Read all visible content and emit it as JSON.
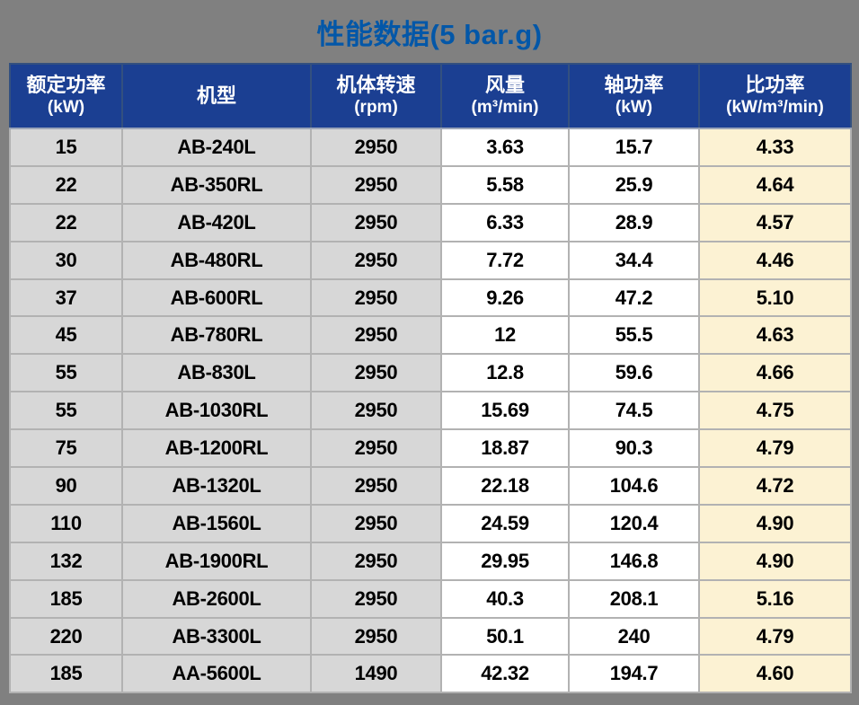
{
  "title": "性能数据(5 bar.g)",
  "table": {
    "columns": [
      {
        "id": "rated_power",
        "label": "额定功率",
        "unit": "(kW)"
      },
      {
        "id": "model",
        "label": "机型",
        "unit": ""
      },
      {
        "id": "speed",
        "label": "机体转速",
        "unit": "(rpm)"
      },
      {
        "id": "air_flow",
        "label": "风量",
        "unit": "(m³/min)"
      },
      {
        "id": "shaft_power",
        "label": "轴功率",
        "unit": "(kW)"
      },
      {
        "id": "specific_power",
        "label": "比功率",
        "unit": "(kW/m³/min)"
      }
    ],
    "rows": [
      [
        "15",
        "AB-240L",
        "2950",
        "3.63",
        "15.7",
        "4.33"
      ],
      [
        "22",
        "AB-350RL",
        "2950",
        "5.58",
        "25.9",
        "4.64"
      ],
      [
        "22",
        "AB-420L",
        "2950",
        "6.33",
        "28.9",
        "4.57"
      ],
      [
        "30",
        "AB-480RL",
        "2950",
        "7.72",
        "34.4",
        "4.46"
      ],
      [
        "37",
        "AB-600RL",
        "2950",
        "9.26",
        "47.2",
        "5.10"
      ],
      [
        "45",
        "AB-780RL",
        "2950",
        "12",
        "55.5",
        "4.63"
      ],
      [
        "55",
        "AB-830L",
        "2950",
        "12.8",
        "59.6",
        "4.66"
      ],
      [
        "55",
        "AB-1030RL",
        "2950",
        "15.69",
        "74.5",
        "4.75"
      ],
      [
        "75",
        "AB-1200RL",
        "2950",
        "18.87",
        "90.3",
        "4.79"
      ],
      [
        "90",
        "AB-1320L",
        "2950",
        "22.18",
        "104.6",
        "4.72"
      ],
      [
        "110",
        "AB-1560L",
        "2950",
        "24.59",
        "120.4",
        "4.90"
      ],
      [
        "132",
        "AB-1900RL",
        "2950",
        "29.95",
        "146.8",
        "4.90"
      ],
      [
        "185",
        "AB-2600L",
        "2950",
        "40.3",
        "208.1",
        "5.16"
      ],
      [
        "220",
        "AB-3300L",
        "2950",
        "50.1",
        "240",
        "4.79"
      ],
      [
        "185",
        "AA-5600L",
        "1490",
        "42.32",
        "194.7",
        "4.60"
      ]
    ]
  },
  "colors": {
    "background": "#808080",
    "title_text": "#0357a8",
    "header_bg": "#1b3f92",
    "header_text": "#ffffff",
    "col_gray_bg": "#d7d7d7",
    "col_white_bg": "#ffffff",
    "col_cream_bg": "#fcf2d3",
    "grid_line": "#b2b2b2",
    "cell_text": "#000000"
  }
}
